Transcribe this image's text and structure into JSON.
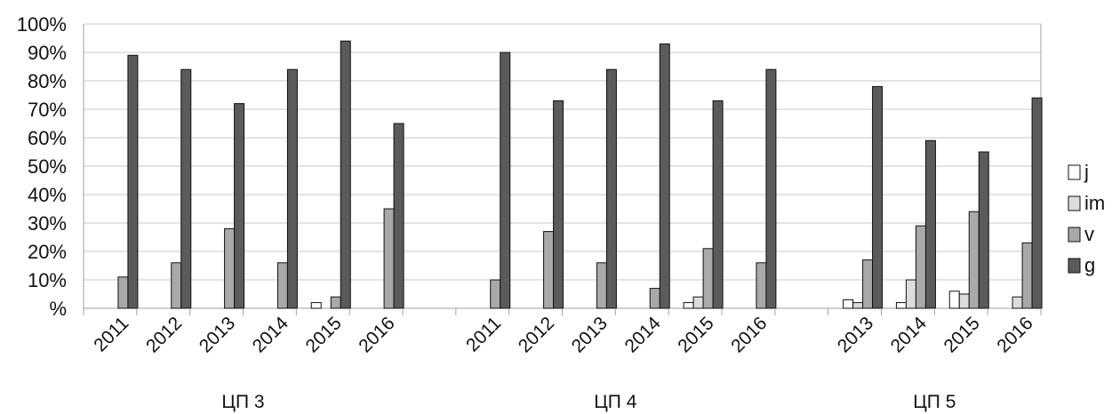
{
  "chart_data": {
    "type": "bar",
    "ylim": [
      0,
      100
    ],
    "yticks": [
      "%",
      "10%",
      "20%",
      "30%",
      "40%",
      "50%",
      "60%",
      "70%",
      "80%",
      "90%",
      "100%"
    ],
    "grid": true,
    "legend_position": "right",
    "groups": [
      {
        "label": "ЦП 3",
        "categories": [
          "2011",
          "2012",
          "2013",
          "2014",
          "2015",
          "2016"
        ]
      },
      {
        "label": "ЦП 4",
        "categories": [
          "2011",
          "2012",
          "2013",
          "2014",
          "2015",
          "2016"
        ]
      },
      {
        "label": "ЦП 5",
        "categories": [
          "2013",
          "2014",
          "2015",
          "2016"
        ]
      }
    ],
    "series": [
      {
        "name": "j",
        "color": "#ffffff",
        "values": [
          0,
          0,
          0,
          0,
          2,
          0,
          0,
          0,
          0,
          0,
          2,
          0,
          3,
          2,
          6,
          0
        ]
      },
      {
        "name": "im",
        "color": "#dcdcdc",
        "values": [
          0,
          0,
          0,
          0,
          0,
          0,
          0,
          0,
          0,
          0,
          4,
          0,
          2,
          10,
          5,
          4
        ]
      },
      {
        "name": "v",
        "color": "#a9a9a9",
        "values": [
          11,
          16,
          28,
          16,
          4,
          35,
          10,
          27,
          16,
          7,
          21,
          16,
          17,
          29,
          34,
          23
        ]
      },
      {
        "name": "g",
        "color": "#5b5b5b",
        "values": [
          89,
          84,
          72,
          84,
          94,
          65,
          90,
          73,
          84,
          93,
          73,
          84,
          78,
          59,
          55,
          74
        ]
      }
    ]
  }
}
